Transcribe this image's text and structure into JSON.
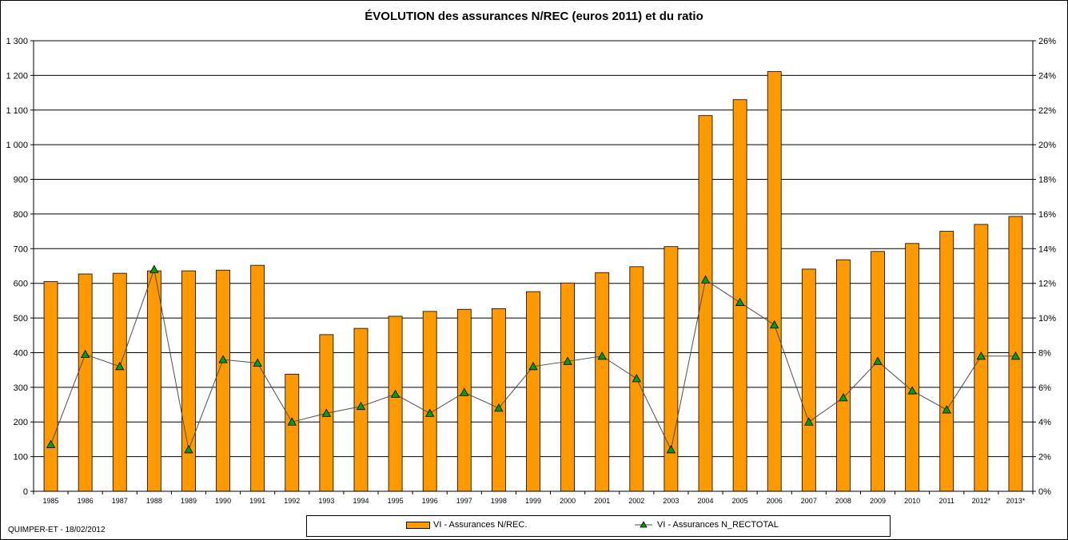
{
  "title": "ÉVOLUTION  des assurances N/REC (euros 2011) et du ratio",
  "footer": "QUIMPER-ET -  18/02/2012",
  "chart_data": {
    "type": "bar",
    "categories": [
      "1985",
      "1986",
      "1987",
      "1988",
      "1989",
      "1990",
      "1991",
      "1992",
      "1993",
      "1994",
      "1995",
      "1996",
      "1997",
      "1998",
      "1999",
      "2000",
      "2001",
      "2002",
      "2003",
      "2004",
      "2005",
      "2006",
      "2007",
      "2008",
      "2009",
      "2010",
      "2011",
      "2012*",
      "2013*"
    ],
    "y_left": {
      "ylim": [
        0,
        1300
      ],
      "ticks": [
        "0",
        "100",
        "200",
        "300",
        "400",
        "500",
        "600",
        "700",
        "800",
        "900",
        "1 000",
        "1 100",
        "1 200",
        "1 300"
      ]
    },
    "y_right": {
      "ylim": [
        0,
        26
      ],
      "ticks": [
        "0%",
        "2%",
        "4%",
        "6%",
        "8%",
        "10%",
        "12%",
        "14%",
        "16%",
        "18%",
        "20%",
        "22%",
        "24%",
        "26%"
      ]
    },
    "grid": true,
    "legend_position": "bottom",
    "series": [
      {
        "name": "VI - Assurances N/REC.",
        "type": "bar",
        "axis": "left",
        "color": "#ff9900",
        "values": [
          605,
          627,
          629,
          636,
          636,
          638,
          652,
          338,
          452,
          470,
          505,
          519,
          525,
          527,
          576,
          601,
          631,
          648,
          706,
          1084,
          1130,
          1211,
          641,
          668,
          692,
          715,
          750,
          770,
          793
        ]
      },
      {
        "name": "VI - Assurances N_RECTOTAL",
        "type": "line",
        "axis": "right",
        "color": "#4d4d4d",
        "marker_color": "#00a000",
        "values": [
          2.7,
          7.9,
          7.2,
          12.8,
          2.4,
          7.6,
          7.4,
          4.0,
          4.5,
          4.9,
          5.6,
          4.5,
          5.7,
          4.8,
          7.2,
          7.5,
          7.8,
          6.5,
          2.4,
          12.2,
          10.9,
          9.6,
          4.0,
          5.4,
          7.5,
          5.8,
          4.7,
          7.8,
          7.8
        ]
      }
    ]
  }
}
